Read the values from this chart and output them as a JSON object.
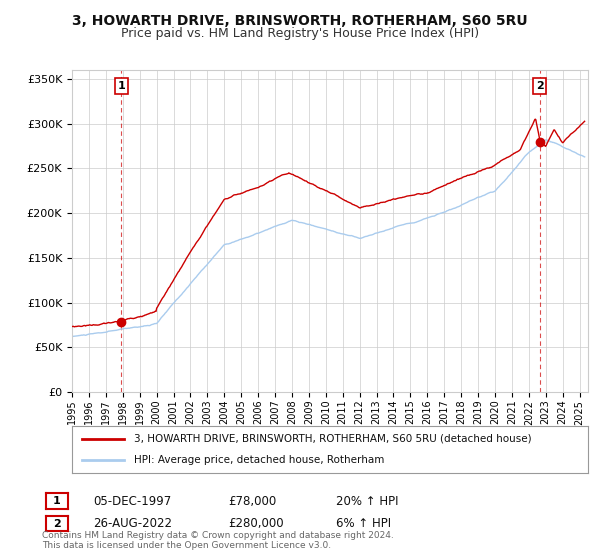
{
  "title": "3, HOWARTH DRIVE, BRINSWORTH, ROTHERHAM, S60 5RU",
  "subtitle": "Price paid vs. HM Land Registry's House Price Index (HPI)",
  "ylim": [
    0,
    360000
  ],
  "yticks": [
    0,
    50000,
    100000,
    150000,
    200000,
    250000,
    300000,
    350000
  ],
  "ytick_labels": [
    "£0",
    "£50K",
    "£100K",
    "£150K",
    "£200K",
    "£250K",
    "£300K",
    "£350K"
  ],
  "xlim_start": 1995.0,
  "xlim_end": 2025.5,
  "house_color": "#cc0000",
  "hpi_color": "#aaccee",
  "legend_house": "3, HOWARTH DRIVE, BRINSWORTH, ROTHERHAM, S60 5RU (detached house)",
  "legend_hpi": "HPI: Average price, detached house, Rotherham",
  "marker1_year": 1997.92,
  "marker1_value": 78000,
  "marker1_label": "1",
  "marker1_date": "05-DEC-1997",
  "marker1_price": "£78,000",
  "marker1_hpi": "20% ↑ HPI",
  "marker2_year": 2022.65,
  "marker2_value": 280000,
  "marker2_label": "2",
  "marker2_date": "26-AUG-2022",
  "marker2_price": "£280,000",
  "marker2_hpi": "6% ↑ HPI",
  "footnote": "Contains HM Land Registry data © Crown copyright and database right 2024.\nThis data is licensed under the Open Government Licence v3.0.",
  "background_color": "#ffffff",
  "grid_color": "#cccccc",
  "title_fontsize": 10,
  "subtitle_fontsize": 9
}
